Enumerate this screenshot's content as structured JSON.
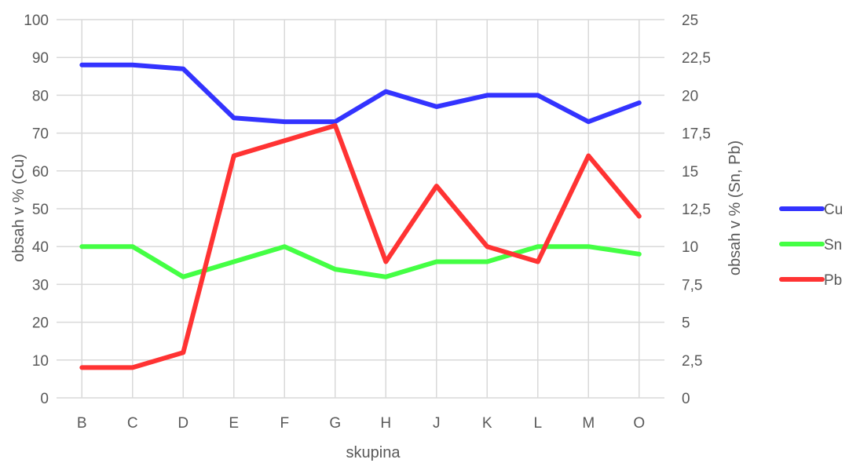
{
  "chart_data": {
    "type": "line",
    "xlabel": "skupina",
    "ylabel_left": "obsah v % (Cu)",
    "ylabel_right": "obsah v % (Sn, Pb)",
    "categories": [
      "B",
      "C",
      "D",
      "E",
      "F",
      "G",
      "H",
      "J",
      "K",
      "L",
      "M",
      "O"
    ],
    "y_left": {
      "ylim": [
        0,
        100
      ],
      "ticks": [
        "0",
        "10",
        "20",
        "30",
        "40",
        "50",
        "60",
        "70",
        "80",
        "90",
        "100"
      ]
    },
    "y_right": {
      "ylim": [
        0,
        25
      ],
      "ticks": [
        "0",
        "2,5",
        "5",
        "7,5",
        "10",
        "12,5",
        "15",
        "17,5",
        "20",
        "22,5",
        "25"
      ]
    },
    "grid": true,
    "legend_position": "right",
    "series": [
      {
        "name": "Cu",
        "axis": "left",
        "color": "#3333ff",
        "values": [
          88,
          88,
          87,
          74,
          73,
          73,
          81,
          77,
          80,
          80,
          73,
          78
        ]
      },
      {
        "name": "Sn",
        "axis": "right",
        "color": "#44ff44",
        "values": [
          10,
          10,
          8,
          9,
          10,
          8.5,
          8,
          9,
          9,
          10,
          10,
          9.5
        ]
      },
      {
        "name": "Pb",
        "axis": "right",
        "color": "#ff3333",
        "values": [
          2,
          2,
          3,
          16,
          17,
          18,
          9,
          14,
          10,
          9,
          16,
          12
        ]
      }
    ]
  }
}
